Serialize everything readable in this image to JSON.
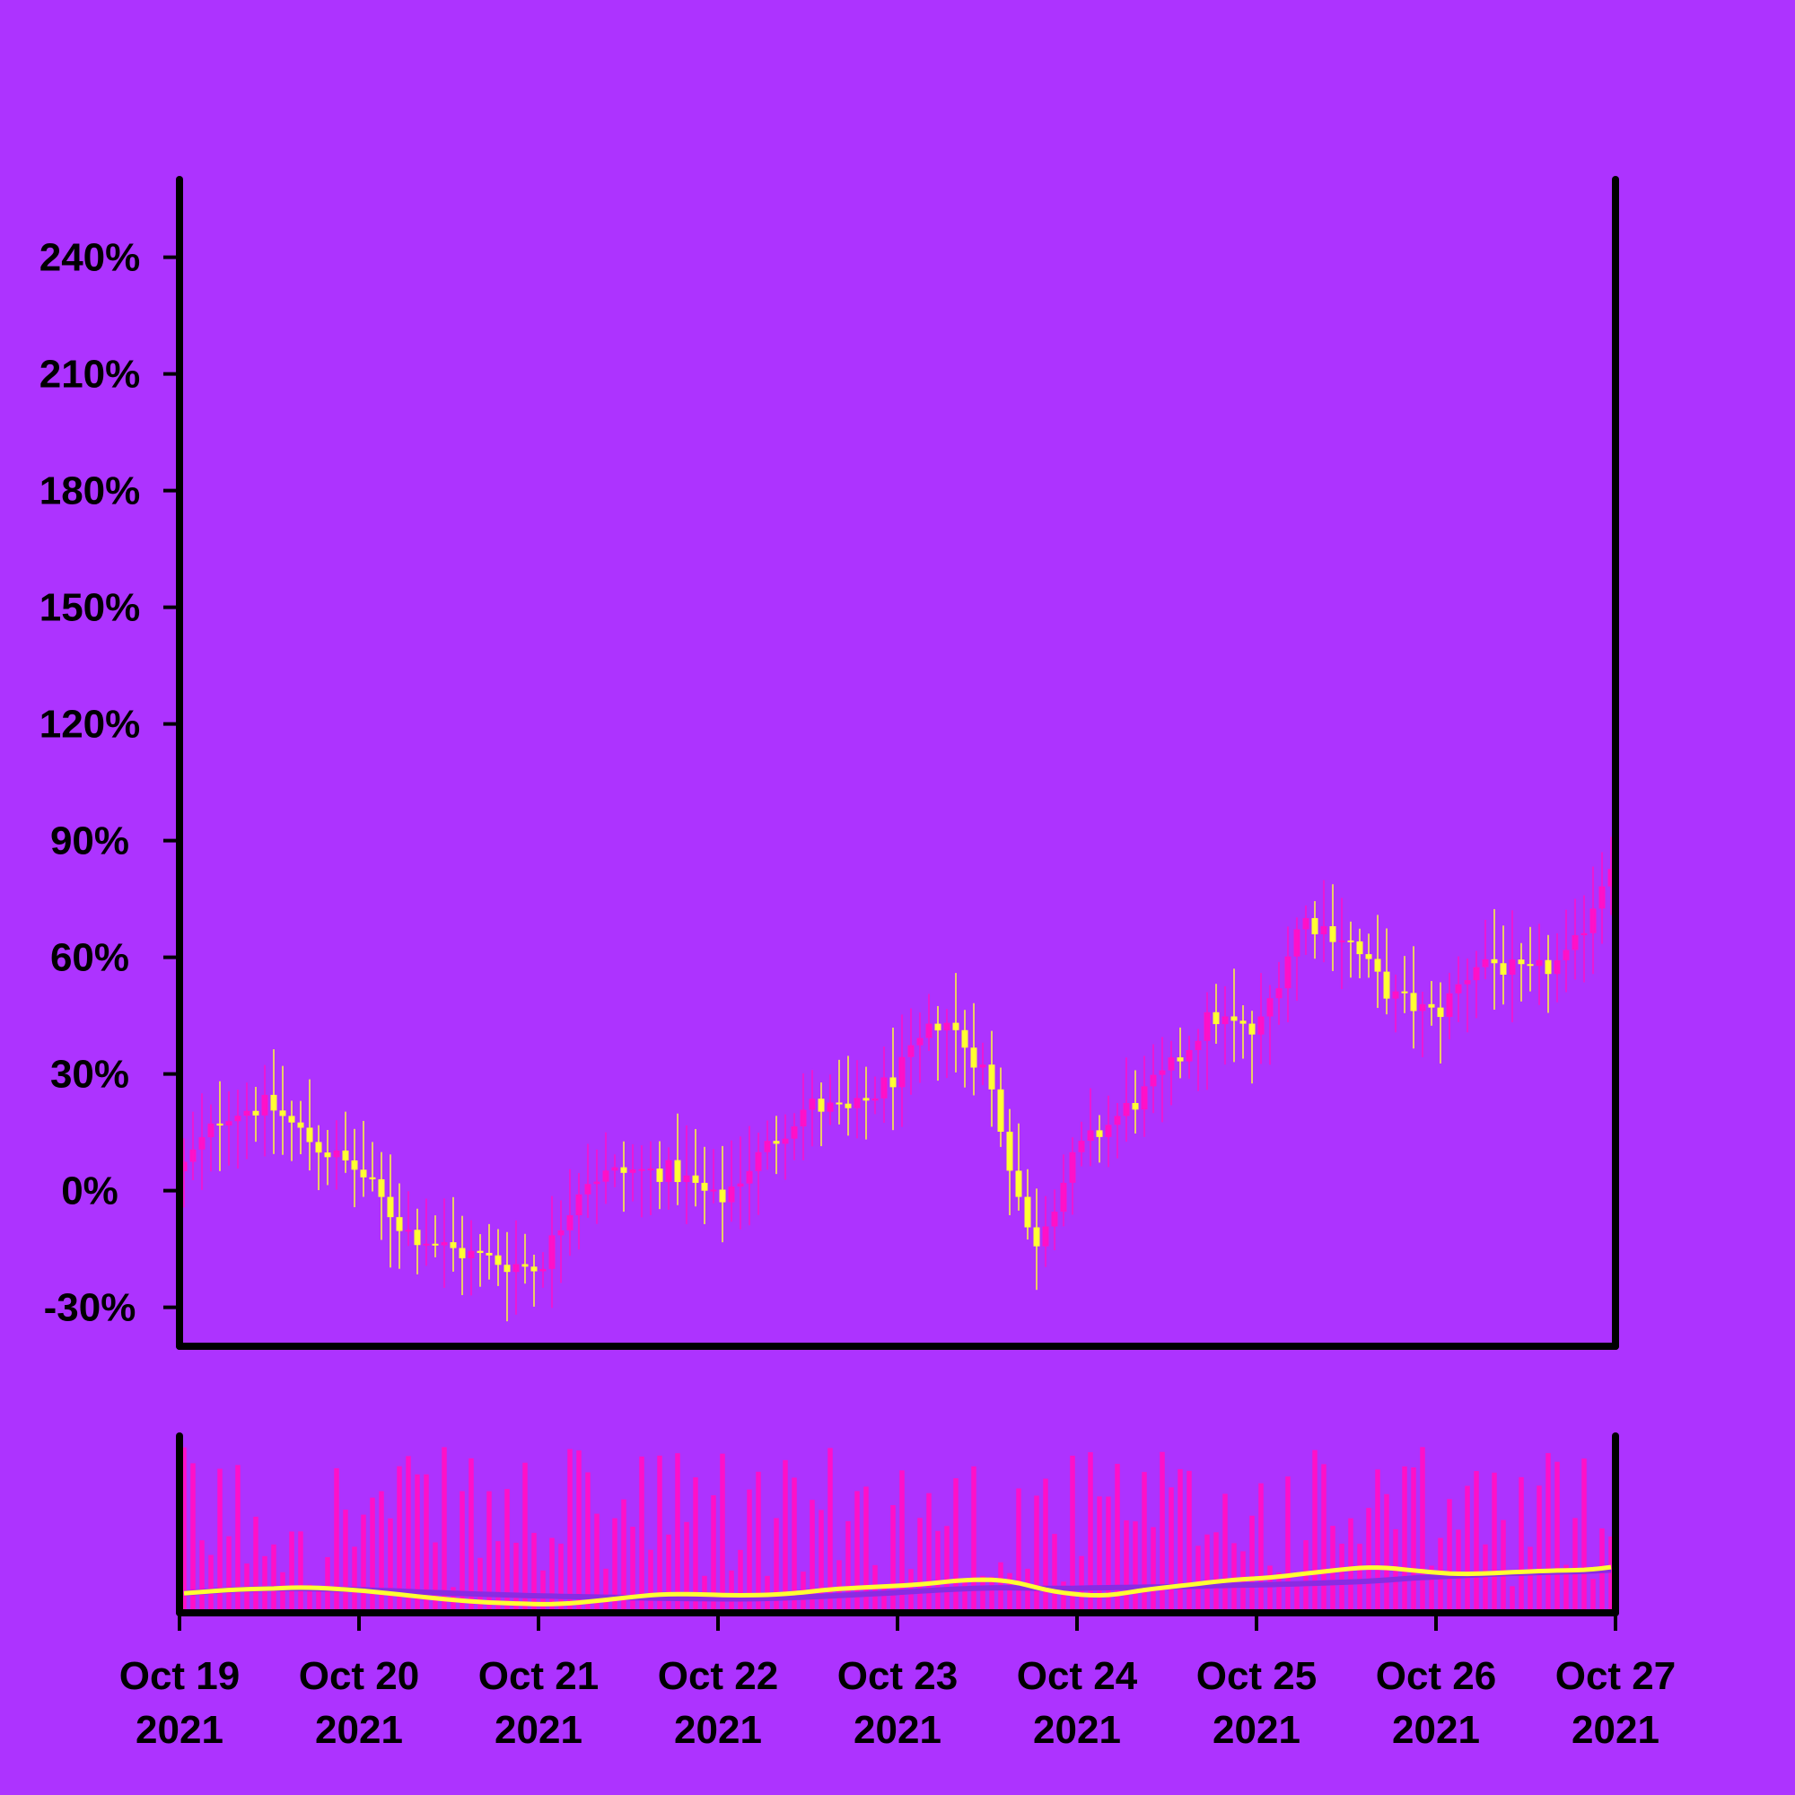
{
  "chart_data": {
    "type": "candlestick",
    "title": "",
    "xlabel": "",
    "ylabel": "",
    "y_axis": {
      "ticks": [
        -30,
        0,
        30,
        60,
        90,
        120,
        150,
        180,
        210,
        240
      ],
      "tick_labels": [
        "-30%",
        "0%",
        "30%",
        "60%",
        "90%",
        "120%",
        "150%",
        "180%",
        "210%",
        "240%"
      ],
      "ylim": [
        -40,
        260
      ],
      "unit": "%"
    },
    "x_axis": {
      "start": "2021-10-19",
      "end": "2021-10-27",
      "ticks": [
        "2021-10-19",
        "2021-10-20",
        "2021-10-21",
        "2021-10-22",
        "2021-10-23",
        "2021-10-24",
        "2021-10-25",
        "2021-10-26",
        "2021-10-27"
      ],
      "tick_labels": [
        [
          "Oct 19",
          "2021"
        ],
        [
          "Oct 20",
          "2021"
        ],
        [
          "Oct 21",
          "2021"
        ],
        [
          "Oct 22",
          "2021"
        ],
        [
          "Oct 23",
          "2021"
        ],
        [
          "Oct 24",
          "2021"
        ],
        [
          "Oct 25",
          "2021"
        ],
        [
          "Oct 26",
          "2021"
        ],
        [
          "Oct 27",
          "2021"
        ]
      ]
    },
    "price_path": [
      {
        "t": "2021-10-19T00:00",
        "v": 5
      },
      {
        "t": "2021-10-19T06:00",
        "v": 20
      },
      {
        "t": "2021-10-19T12:00",
        "v": 22
      },
      {
        "t": "2021-10-19T18:00",
        "v": 12
      },
      {
        "t": "2021-10-20T00:00",
        "v": 5
      },
      {
        "t": "2021-10-20T06:00",
        "v": -10
      },
      {
        "t": "2021-10-20T12:00",
        "v": -15
      },
      {
        "t": "2021-10-20T18:00",
        "v": -18
      },
      {
        "t": "2021-10-21T00:00",
        "v": -20
      },
      {
        "t": "2021-10-21T06:00",
        "v": 3
      },
      {
        "t": "2021-10-21T12:00",
        "v": 5
      },
      {
        "t": "2021-10-21T18:00",
        "v": 5
      },
      {
        "t": "2021-10-22T00:00",
        "v": -3
      },
      {
        "t": "2021-10-22T06:00",
        "v": 10
      },
      {
        "t": "2021-10-22T12:00",
        "v": 22
      },
      {
        "t": "2021-10-22T18:00",
        "v": 20
      },
      {
        "t": "2021-10-23T00:00",
        "v": 30
      },
      {
        "t": "2021-10-23T06:00",
        "v": 45
      },
      {
        "t": "2021-10-23T12:00",
        "v": 30
      },
      {
        "t": "2021-10-23T18:00",
        "v": -15
      },
      {
        "t": "2021-10-24T00:00",
        "v": 10
      },
      {
        "t": "2021-10-24T06:00",
        "v": 20
      },
      {
        "t": "2021-10-24T12:00",
        "v": 30
      },
      {
        "t": "2021-10-24T18:00",
        "v": 45
      },
      {
        "t": "2021-10-25T00:00",
        "v": 40
      },
      {
        "t": "2021-10-25T06:00",
        "v": 70
      },
      {
        "t": "2021-10-25T12:00",
        "v": 65
      },
      {
        "t": "2021-10-25T18:00",
        "v": 50
      },
      {
        "t": "2021-10-26T00:00",
        "v": 45
      },
      {
        "t": "2021-10-26T06:00",
        "v": 60
      },
      {
        "t": "2021-10-26T12:00",
        "v": 55
      },
      {
        "t": "2021-10-26T18:00",
        "v": 60
      },
      {
        "t": "2021-10-27T00:00",
        "v": 88
      }
    ],
    "candles_per_day": 20,
    "colors": {
      "background": "#ad33ff",
      "up": "#ff10c8",
      "down": "#ffff33",
      "axis": "#000000",
      "ma_fast": "#ffff33",
      "ma_slow": "#8a2be2"
    },
    "volume_panel": true,
    "grid": false,
    "legend": "none"
  }
}
